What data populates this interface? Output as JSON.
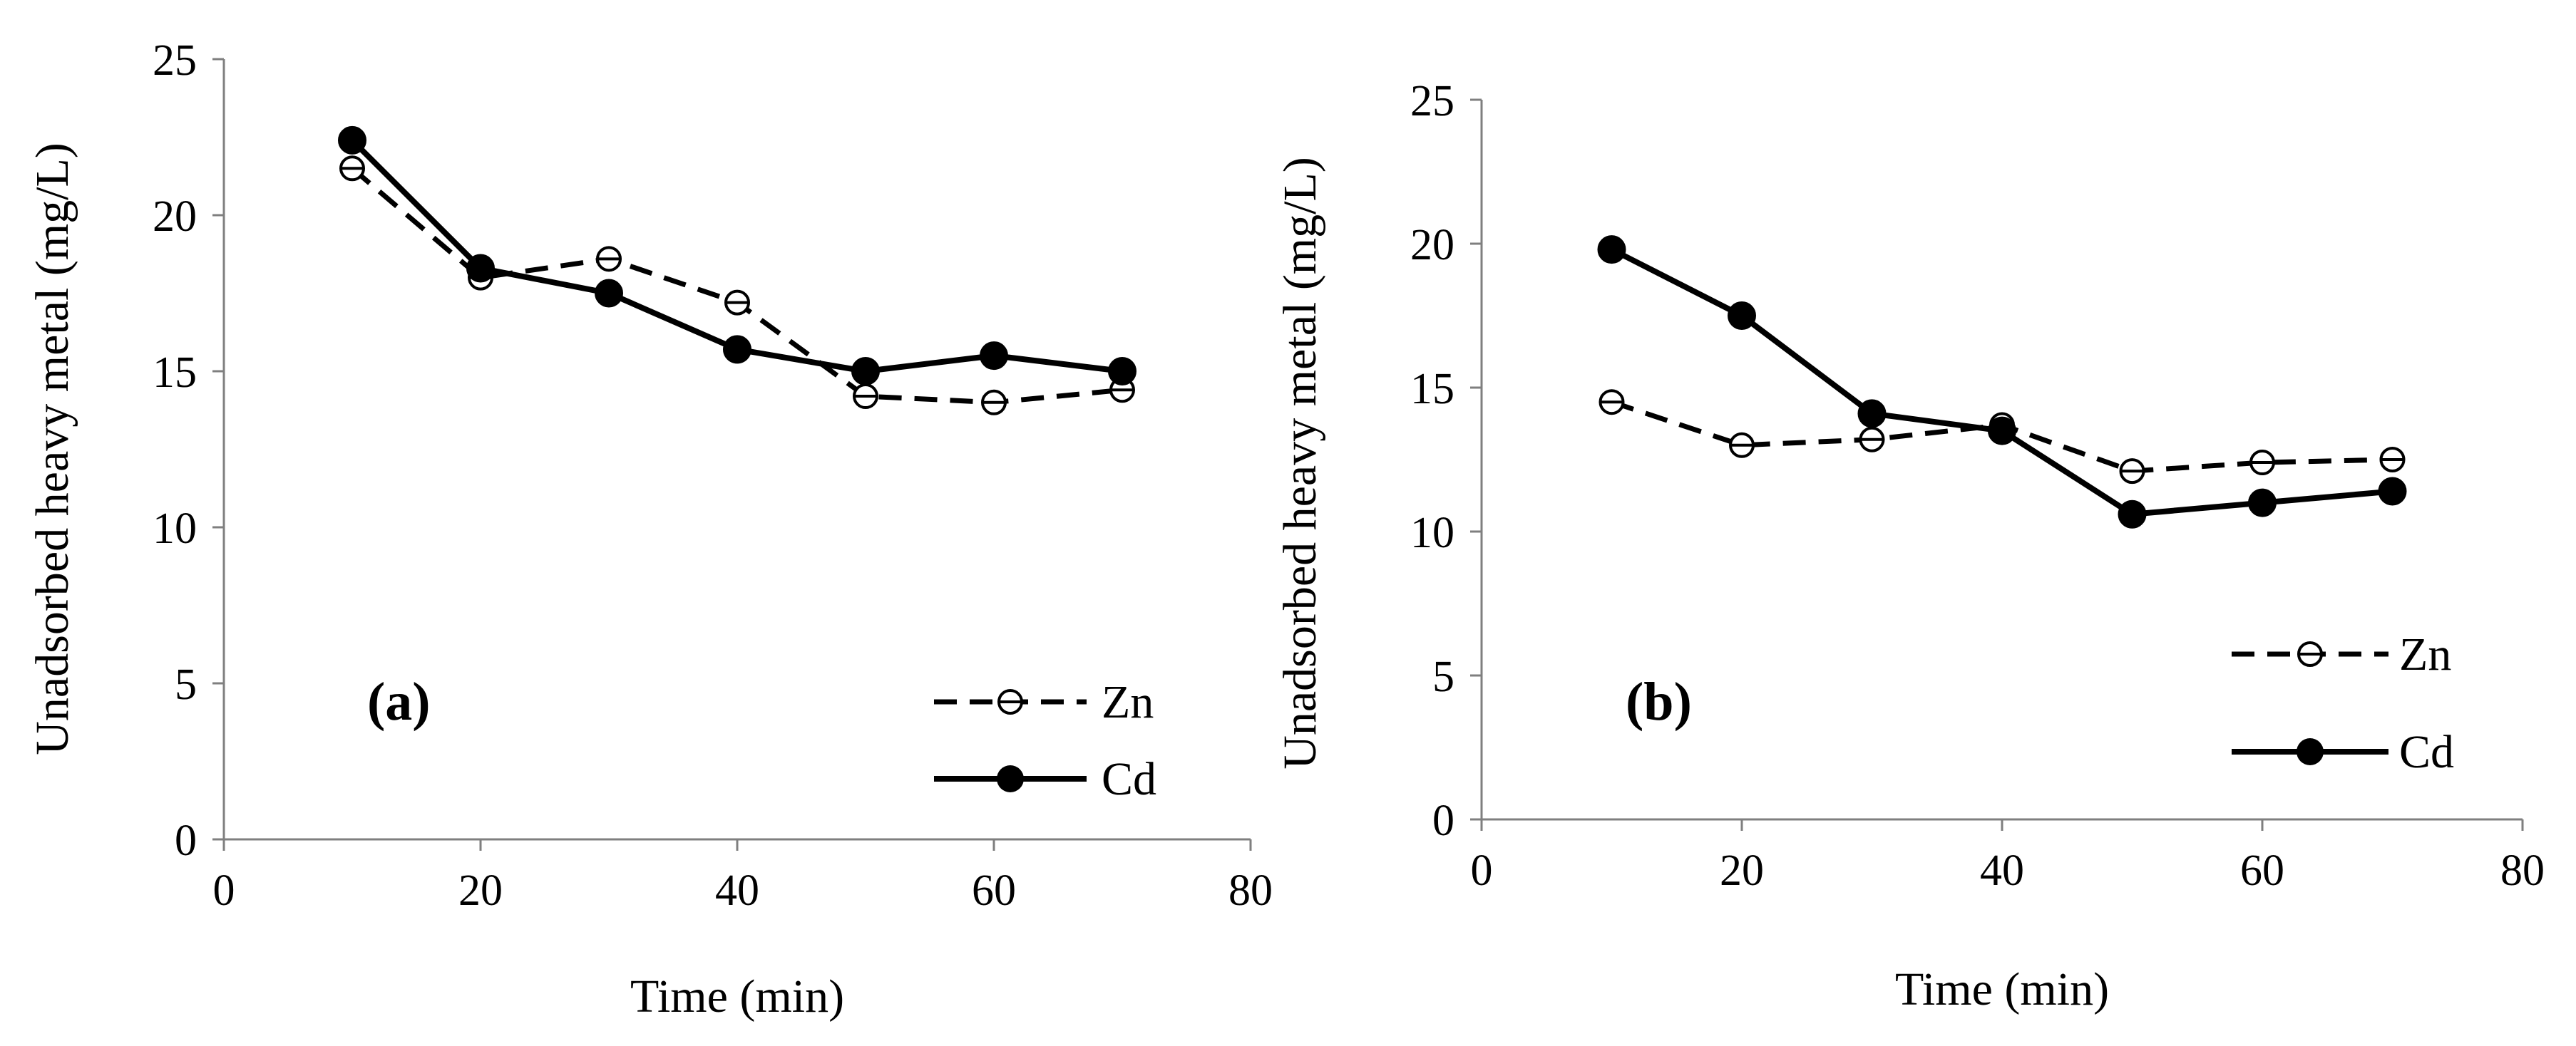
{
  "chart_data": [
    {
      "type": "line",
      "panel_label": "(a)",
      "xlabel": "Time (min)",
      "ylabel": "Unadsorbed heavy metal (mg/L)",
      "xlim": [
        0,
        80
      ],
      "ylim": [
        0,
        25
      ],
      "xticks": [
        0,
        20,
        40,
        60,
        80
      ],
      "yticks": [
        0,
        5,
        10,
        15,
        20,
        25
      ],
      "grid": false,
      "legend_position": "bottom-right",
      "x": [
        10,
        20,
        30,
        40,
        50,
        60,
        70
      ],
      "series": [
        {
          "name": "Zn",
          "style": "dashed",
          "marker": "open-circle",
          "values": [
            21.5,
            18.0,
            18.6,
            17.2,
            14.2,
            14.0,
            14.4
          ]
        },
        {
          "name": "Cd",
          "style": "solid",
          "marker": "filled-circle",
          "values": [
            22.4,
            18.3,
            17.5,
            15.7,
            15.0,
            15.5,
            15.0
          ]
        }
      ]
    },
    {
      "type": "line",
      "panel_label": "(b)",
      "xlabel": "Time (min)",
      "ylabel": "Unadsorbed heavy metal (mg/L)",
      "xlim": [
        0,
        80
      ],
      "ylim": [
        0,
        25
      ],
      "xticks": [
        0,
        20,
        40,
        60,
        80
      ],
      "yticks": [
        0,
        5,
        10,
        15,
        20,
        25
      ],
      "grid": false,
      "legend_position": "bottom-right",
      "x": [
        10,
        20,
        30,
        40,
        50,
        60,
        70
      ],
      "series": [
        {
          "name": "Zn",
          "style": "dashed",
          "marker": "open-circle",
          "values": [
            14.5,
            13.0,
            13.2,
            13.7,
            12.1,
            12.4,
            12.5
          ]
        },
        {
          "name": "Cd",
          "style": "solid",
          "marker": "filled-circle",
          "values": [
            19.8,
            17.5,
            14.1,
            13.5,
            10.6,
            11.0,
            11.4
          ]
        }
      ]
    }
  ]
}
